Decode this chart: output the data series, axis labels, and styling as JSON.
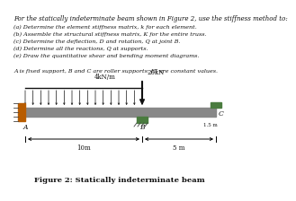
{
  "title_text": "For the statically indeterminate beam shown in Figure 2, use the stiffness method to:",
  "items": [
    "(a) Determine the element stiffness matrix, k for each element.",
    "(b) Assemble the structural stiffness matrix, K for the entire truss.",
    "(c) Determine the deflection, D and rotation, Q at joint B.",
    "(d) Determine all the reactions, Q at supports.",
    "(e) Draw the quantitative shear and bending moment diagrams."
  ],
  "note": "A is fixed support, B and C are roller supports. EI are constant values.",
  "fig_caption": "Figure 2: Statically indeterminate beam",
  "beam_load_label": "4kN/m",
  "point_load_label": "20kN",
  "dim_label_left": "10m",
  "dim_label_right": "5 m",
  "offset_label": "1.5 m",
  "bg_color": "#ffffff",
  "text_color": "#111111",
  "beam_color": "#888888",
  "support_color_A": "#b85c00",
  "support_color_B": "#4a7c3f",
  "support_color_C": "#4a7c3f",
  "arrow_color": "#111111"
}
